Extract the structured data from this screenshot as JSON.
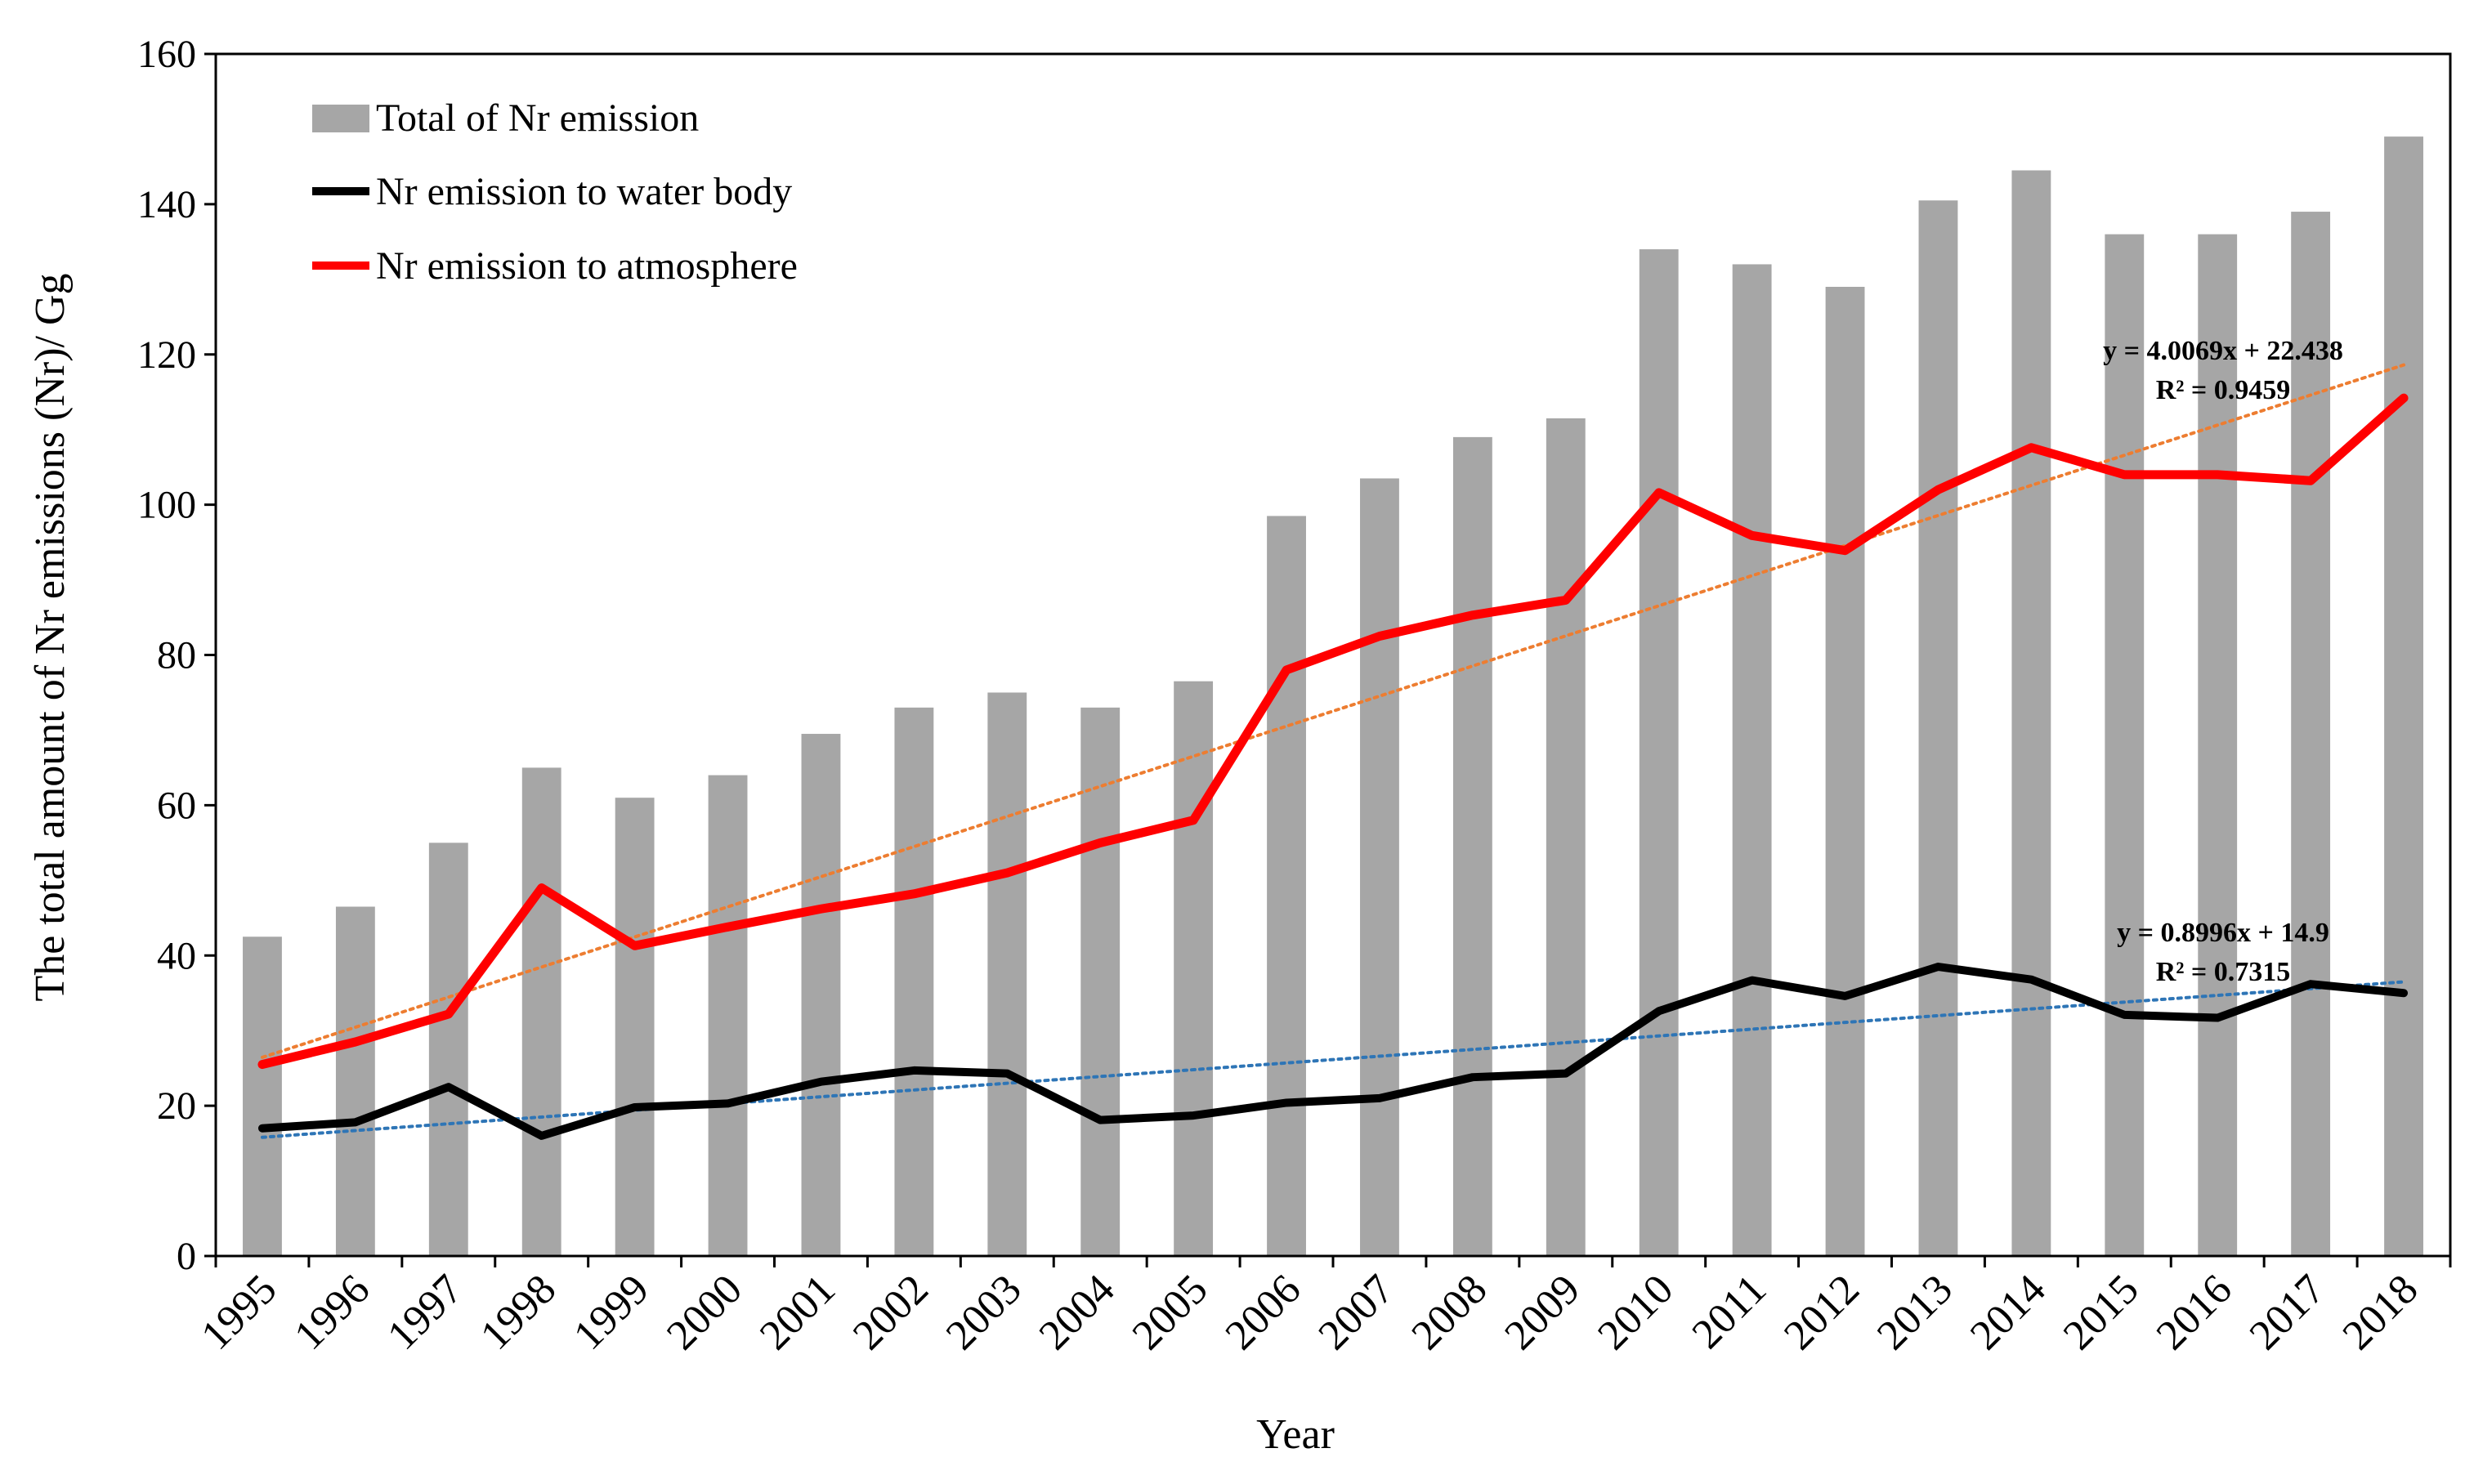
{
  "chart_data": {
    "type": "bar",
    "title": "",
    "xlabel": "Year",
    "ylabel": "The total amount of Nr emissions (Nr)/ Gg",
    "ylim": [
      0,
      160
    ],
    "y_ticks": [
      "0",
      "20",
      "40",
      "60",
      "80",
      "100",
      "120",
      "140",
      "160"
    ],
    "grid": false,
    "legend_position": "top-left",
    "categories": [
      "1995",
      "1996",
      "1997",
      "1998",
      "1999",
      "2000",
      "2001",
      "2002",
      "2003",
      "2004",
      "2005",
      "2006",
      "2007",
      "2008",
      "2009",
      "2010",
      "2011",
      "2012",
      "2013",
      "2014",
      "2015",
      "2016",
      "2017",
      "2018"
    ],
    "series": [
      {
        "name": "Total of Nr emission",
        "kind": "bar",
        "color": "#a6a6a6",
        "values": [
          42.5,
          46.5,
          55,
          65,
          61,
          64,
          69.5,
          73,
          75,
          73,
          76.5,
          98.5,
          103.5,
          109,
          111.5,
          134,
          132,
          129,
          140.5,
          144.5,
          136,
          136,
          139,
          149
        ]
      },
      {
        "name": "Nr emission to water body",
        "kind": "line",
        "color": "#000000",
        "values": [
          17,
          17.8,
          22.5,
          16,
          19.8,
          20.3,
          23.2,
          24.7,
          24.3,
          18.1,
          18.7,
          20.4,
          21.0,
          23.8,
          24.3,
          32.6,
          36.7,
          34.6,
          38.5,
          36.8,
          32.1,
          31.7,
          36.2,
          35.0
        ]
      },
      {
        "name": "Nr emission to atmosphere",
        "kind": "line",
        "color": "#ff0000",
        "values": [
          25.5,
          28.5,
          32.2,
          49.0,
          41.3,
          43.8,
          46.2,
          48.2,
          51.0,
          55.0,
          58.0,
          78.0,
          82.5,
          85.3,
          87.3,
          101.6,
          95.9,
          93.9,
          102.0,
          107.6,
          104.0,
          104.0,
          103.2,
          114.2
        ]
      }
    ],
    "trendlines": [
      {
        "of": "Nr emission to atmosphere",
        "slope": 4.0069,
        "intercept": 22.438,
        "color": "#ed7d31",
        "equation": "y = 4.0069x + 22.438",
        "r2": "R² = 0.9459"
      },
      {
        "of": "Nr emission to water body",
        "slope": 0.8996,
        "intercept": 14.9,
        "color": "#2e75b6",
        "equation": "y = 0.8996x + 14.9",
        "r2": "R² = 0.7315"
      }
    ]
  }
}
